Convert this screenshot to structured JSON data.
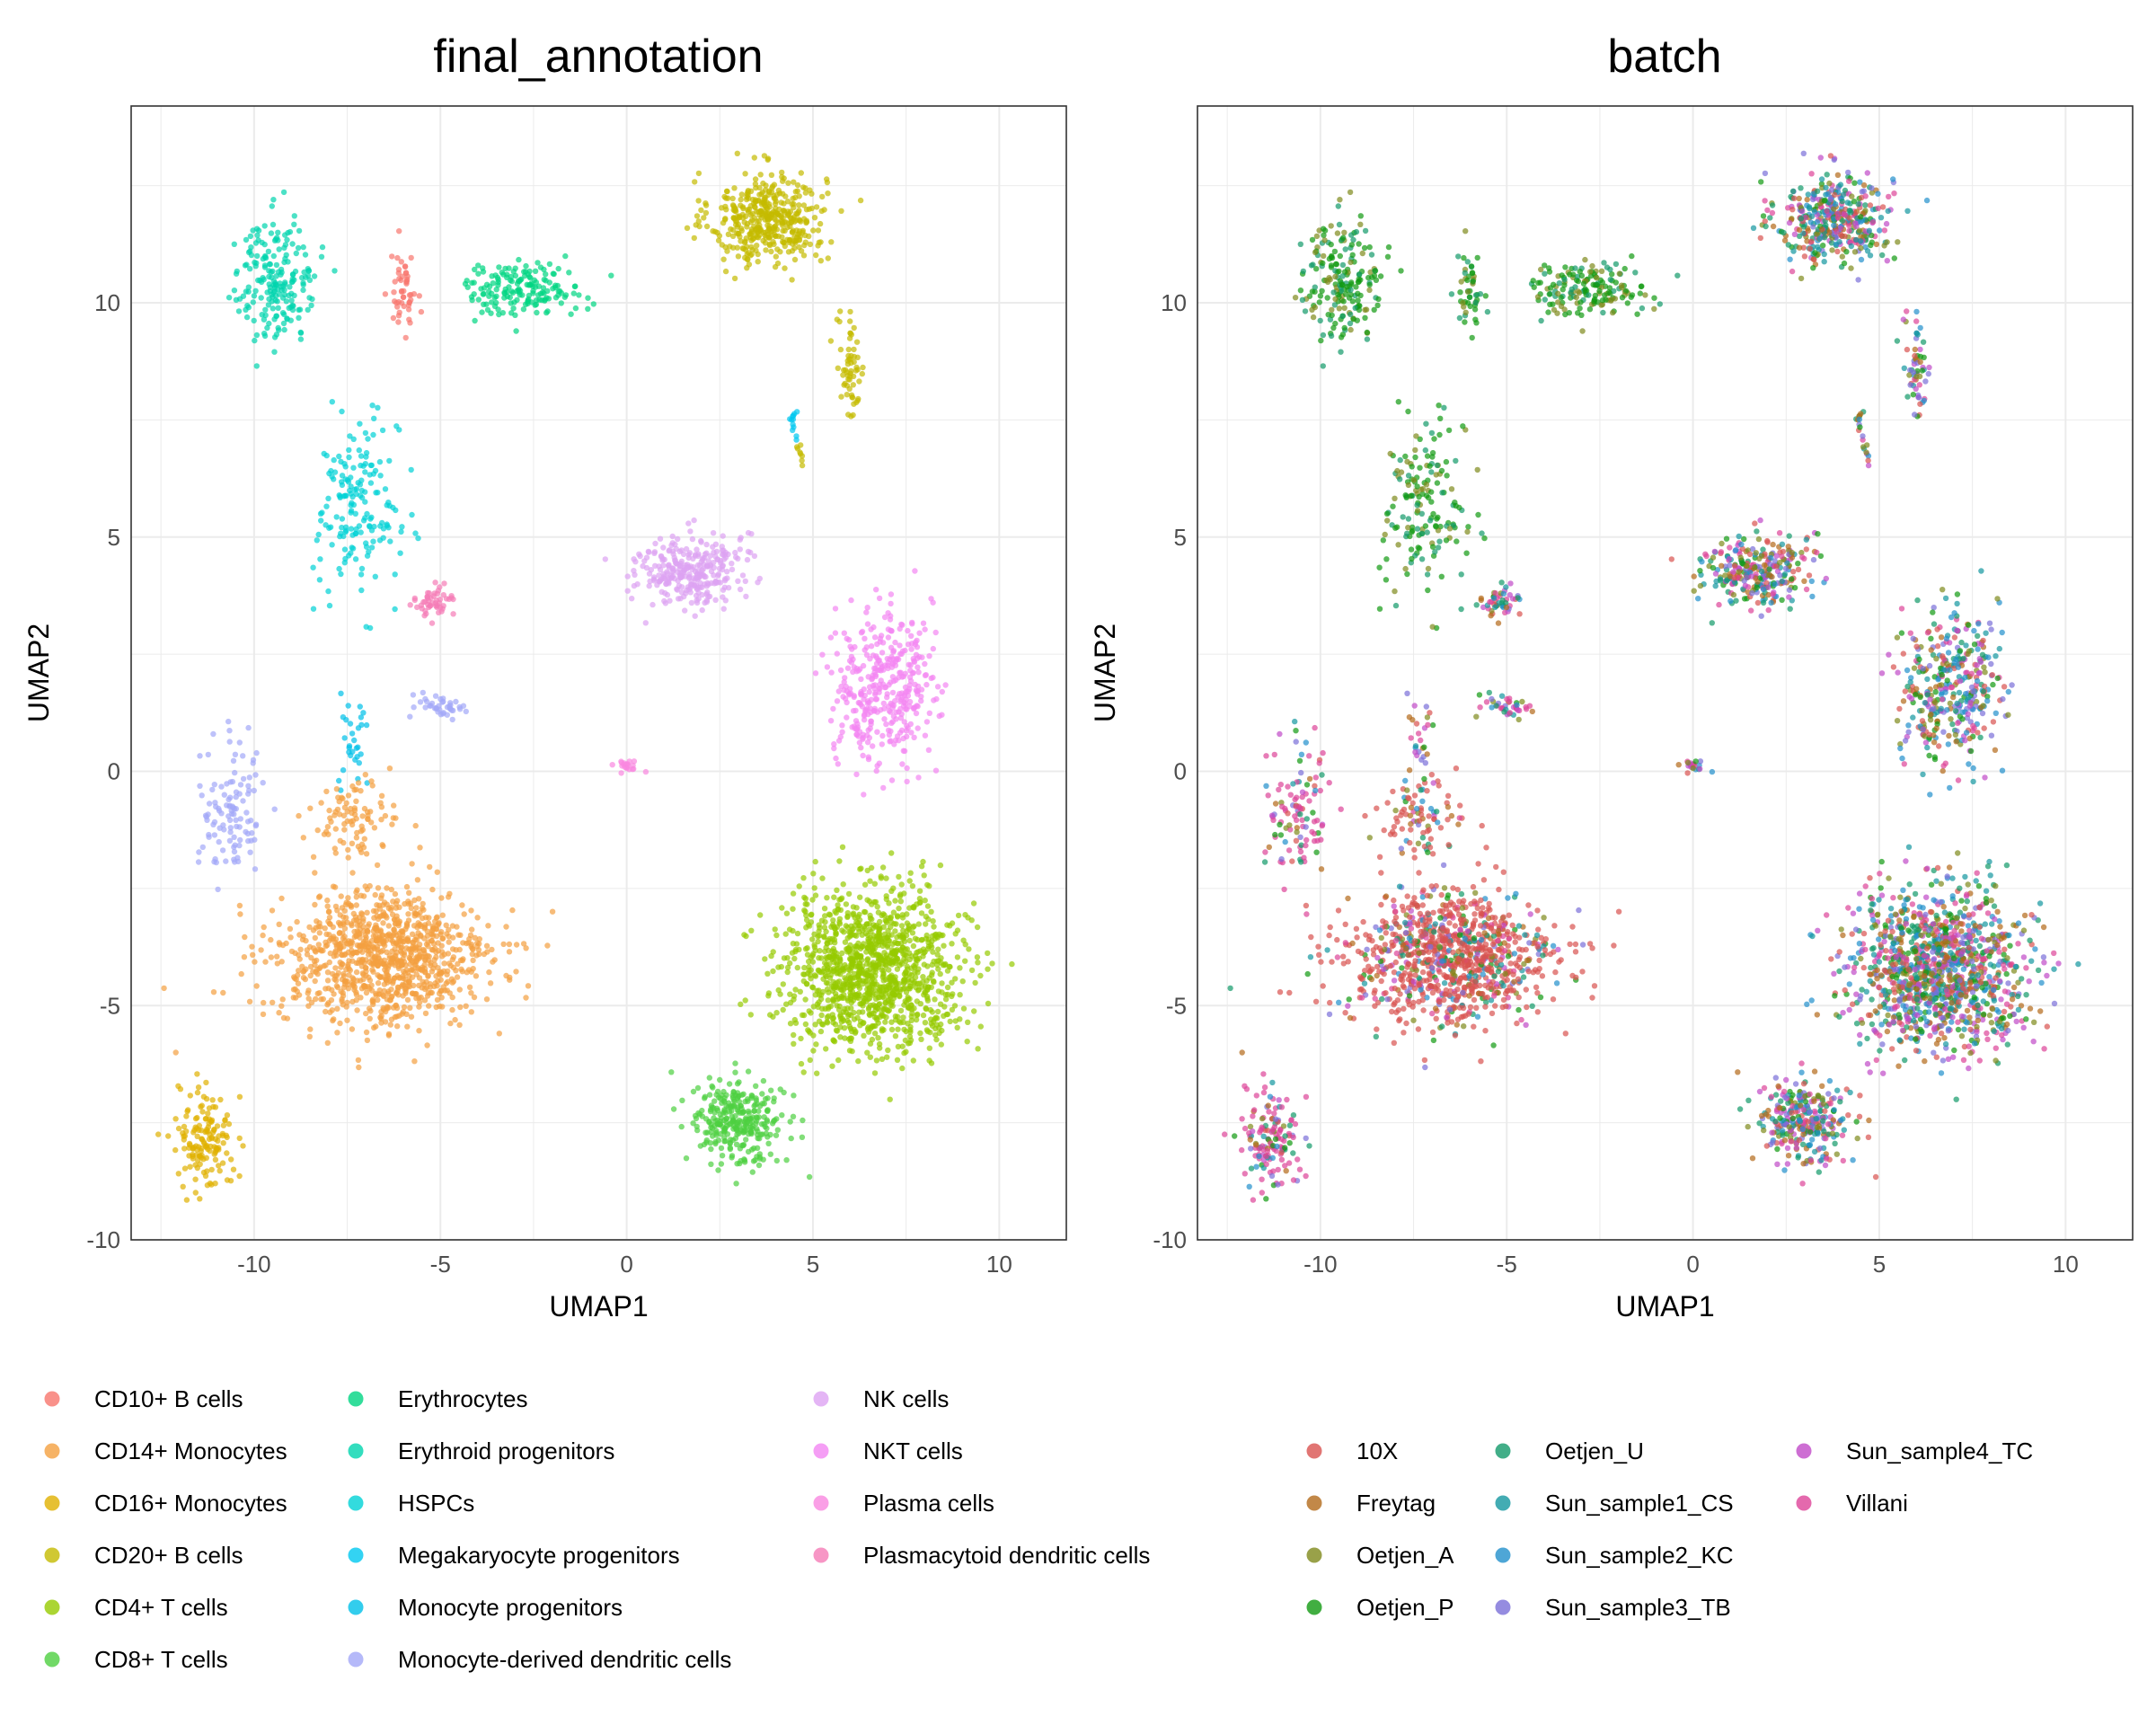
{
  "colors": {
    "cell_types": {
      "CD10+ B cells": "#F8766D",
      "CD14+ Monocytes": "#F4A040",
      "CD16+ Monocytes": "#E0B000",
      "CD20+ B cells": "#C4BA00",
      "CD4+ T cells": "#96CA00",
      "CD8+ T cells": "#4DD040",
      "Erythrocytes": "#00D582",
      "Erythroid progenitors": "#00D4AE",
      "HSPCs": "#00D2D6",
      "Megakaryocyte progenitors": "#00C8F0",
      "Monocyte progenitors": "#00C0E8",
      "Monocyte-derived dendritic cells": "#A3A8F8",
      "NK cells": "#DDA2F2",
      "NKT cells": "#F386F2",
      "Plasma cells": "#F987E0",
      "Plasmacytoid dendritic cells": "#F57CB6"
    },
    "batches": {
      "10X": "#D95350",
      "Freytag": "#B36A1A",
      "Oetjen_A": "#7F8A1C",
      "Oetjen_P": "#119A11",
      "Oetjen_U": "#139A6A",
      "Sun_sample1_CS": "#1497A0",
      "Sun_sample2_KC": "#2290CC",
      "Sun_sample3_TB": "#7A6FD8",
      "Sun_sample4_TC": "#C04AC8",
      "Villani": "#DD4499"
    }
  },
  "chart_data": [
    {
      "type": "scatter",
      "title": "final_annotation",
      "xlabel": "UMAP1",
      "ylabel": "UMAP2",
      "xlim": [
        -13.3,
        11.8
      ],
      "ylim": [
        -10,
        14.2
      ],
      "xticks": [
        -10,
        -5,
        0,
        5,
        10
      ],
      "yticks": [
        -10,
        -5,
        0,
        5,
        10
      ],
      "xtick_labels": [
        "-10",
        "-5",
        "0",
        "5",
        "10"
      ],
      "ytick_labels": [
        "-10",
        "-5",
        "0",
        "5",
        "10"
      ],
      "grid": true,
      "color_by": "cell_type",
      "legend": {
        "placement": "bottom",
        "columns": 3,
        "entries": [
          "CD10+ B cells",
          "CD14+ Monocytes",
          "CD16+ Monocytes",
          "CD20+ B cells",
          "CD4+ T cells",
          "CD8+ T cells",
          "Erythrocytes",
          "Erythroid progenitors",
          "HSPCs",
          "Megakaryocyte progenitors",
          "Monocyte progenitors",
          "Monocyte-derived dendritic cells",
          "NK cells",
          "NKT cells",
          "Plasma cells",
          "Plasmacytoid dendritic cells"
        ]
      },
      "clusters": [
        {
          "label": "CD20+ B cells",
          "center": [
            3.8,
            11.8
          ],
          "spread": [
            1.4,
            0.9
          ],
          "n": 420
        },
        {
          "label": "CD20+ B cells",
          "center": [
            6.0,
            8.6
          ],
          "spread": [
            0.35,
            1.0
          ],
          "n": 60
        },
        {
          "label": "CD20+ B cells",
          "center": [
            4.7,
            6.8
          ],
          "spread": [
            0.1,
            0.3
          ],
          "n": 8
        },
        {
          "label": "CD10+ B cells",
          "center": [
            -6.0,
            10.2
          ],
          "spread": [
            0.3,
            0.8
          ],
          "n": 50
        },
        {
          "label": "Erythrocytes",
          "center": [
            -2.8,
            10.3
          ],
          "spread": [
            1.5,
            0.5
          ],
          "n": 170
        },
        {
          "label": "Erythroid progenitors",
          "center": [
            -9.4,
            10.5
          ],
          "spread": [
            1.0,
            1.2
          ],
          "n": 200
        },
        {
          "label": "HSPCs",
          "center": [
            -7.2,
            5.6
          ],
          "spread": [
            1.0,
            1.7
          ],
          "n": 170
        },
        {
          "label": "Megakaryocyte progenitors",
          "center": [
            4.5,
            7.5
          ],
          "spread": [
            0.1,
            0.3
          ],
          "n": 12
        },
        {
          "label": "Plasmacytoid dendritic cells",
          "center": [
            -5.2,
            3.6
          ],
          "spread": [
            0.5,
            0.35
          ],
          "n": 50
        },
        {
          "label": "Monocyte-derived dendritic cells",
          "center": [
            -5.0,
            1.4
          ],
          "spread": [
            0.6,
            0.25
          ],
          "n": 40
        },
        {
          "label": "Monocyte-derived dendritic cells",
          "center": [
            -10.6,
            -0.8
          ],
          "spread": [
            0.8,
            1.3
          ],
          "n": 110
        },
        {
          "label": "Monocyte progenitors",
          "center": [
            -7.3,
            0.6
          ],
          "spread": [
            0.4,
            0.9
          ],
          "n": 30
        },
        {
          "label": "CD14+ Monocytes",
          "center": [
            -6.5,
            -4.0
          ],
          "spread": [
            2.6,
            1.3
          ],
          "n": 1000
        },
        {
          "label": "CD14+ Monocytes",
          "center": [
            -7.4,
            -1.0
          ],
          "spread": [
            1.0,
            0.7
          ],
          "n": 90
        },
        {
          "label": "CD16+ Monocytes",
          "center": [
            -11.3,
            -7.8
          ],
          "spread": [
            0.7,
            1.0
          ],
          "n": 150
        },
        {
          "label": "NK cells",
          "center": [
            1.7,
            4.3
          ],
          "spread": [
            1.3,
            0.7
          ],
          "n": 300
        },
        {
          "label": "Plasma cells",
          "center": [
            0.0,
            0.1
          ],
          "spread": [
            0.25,
            0.15
          ],
          "n": 20
        },
        {
          "label": "NKT cells",
          "center": [
            6.9,
            1.8
          ],
          "spread": [
            1.2,
            1.5
          ],
          "n": 380
        },
        {
          "label": "CD4+ T cells",
          "center": [
            6.6,
            -4.2
          ],
          "spread": [
            2.2,
            1.5
          ],
          "n": 1200
        },
        {
          "label": "CD8+ T cells",
          "center": [
            3.0,
            -7.5
          ],
          "spread": [
            1.1,
            0.8
          ],
          "n": 300
        }
      ]
    },
    {
      "type": "scatter",
      "title": "batch",
      "xlabel": "UMAP1",
      "ylabel": "UMAP2",
      "xlim": [
        -13.3,
        11.8
      ],
      "ylim": [
        -10,
        14.2
      ],
      "xticks": [
        -10,
        -5,
        0,
        5,
        10
      ],
      "yticks": [
        -10,
        -5,
        0,
        5,
        10
      ],
      "xtick_labels": [
        "-10",
        "-5",
        "0",
        "5",
        "10"
      ],
      "ytick_labels": [
        "-10",
        "-5",
        "0",
        "5",
        "10"
      ],
      "grid": true,
      "color_by": "batch",
      "legend": {
        "placement": "bottom",
        "columns": 3,
        "entries": [
          "10X",
          "Freytag",
          "Oetjen_A",
          "Oetjen_P",
          "Oetjen_U",
          "Sun_sample1_CS",
          "Sun_sample2_KC",
          "Sun_sample3_TB",
          "Sun_sample4_TC",
          "Villani"
        ]
      }
    }
  ]
}
